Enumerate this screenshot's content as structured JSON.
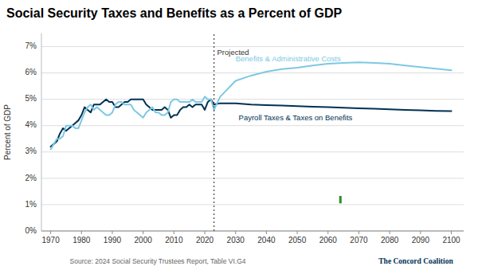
{
  "chart_data": {
    "type": "line",
    "title": "Social Security Taxes and Benefits as a Percent of GDP",
    "ylabel": "Percent of GDP",
    "source": "Source: 2024 Social Security Trustees Report, Table VI.G4",
    "credit": "The Concord Coalition",
    "xlim": [
      1967,
      2104
    ],
    "xticks": [
      1970,
      1980,
      1990,
      2000,
      2010,
      2020,
      2030,
      2040,
      2050,
      2060,
      2070,
      2080,
      2090,
      2100
    ],
    "ylim": [
      0,
      7.5
    ],
    "yticks": [
      {
        "value": 0,
        "label": "0%"
      },
      {
        "value": 1,
        "label": "1%"
      },
      {
        "value": 2,
        "label": "2%"
      },
      {
        "value": 3,
        "label": "3%"
      },
      {
        "value": 4,
        "label": "4%"
      },
      {
        "value": 5,
        "label": "5%"
      },
      {
        "value": 6,
        "label": "6%"
      },
      {
        "value": 7,
        "label": "7%"
      }
    ],
    "grid": true,
    "series": [
      {
        "color": "#003153",
        "x": [
          1970,
          1971,
          1972,
          1973,
          1974,
          1975,
          1976,
          1977,
          1978,
          1979,
          1980,
          1981,
          1982,
          1983,
          1984,
          1985,
          1986,
          1987,
          1988,
          1989,
          1990,
          1991,
          1992,
          1993,
          1994,
          1995,
          1996,
          1997,
          1998,
          1999,
          2000,
          2001,
          2002,
          2003,
          2004,
          2005,
          2006,
          2007,
          2008,
          2009,
          2010,
          2011,
          2012,
          2013,
          2014,
          2015,
          2016,
          2017,
          2018,
          2019,
          2020,
          2021,
          2022,
          2023
        ],
        "values": [
          3.2,
          3.3,
          3.4,
          3.7,
          3.9,
          3.8,
          3.9,
          4.0,
          4.1,
          4.2,
          4.4,
          4.7,
          4.6,
          4.5,
          4.8,
          4.8,
          4.8,
          4.9,
          5.0,
          4.9,
          4.9,
          4.7,
          4.7,
          4.8,
          4.9,
          4.9,
          5.0,
          5.0,
          5.0,
          5.0,
          5.0,
          4.8,
          4.7,
          4.6,
          4.6,
          4.6,
          4.6,
          4.7,
          4.6,
          4.3,
          4.4,
          4.4,
          4.6,
          4.7,
          4.7,
          4.8,
          4.7,
          4.8,
          4.8,
          4.8,
          4.6,
          4.9,
          5.0,
          4.8
        ]
      },
      {
        "color": "#7EC8E3",
        "x": [
          1970,
          1971,
          1972,
          1973,
          1974,
          1975,
          1976,
          1977,
          1978,
          1979,
          1980,
          1981,
          1982,
          1983,
          1984,
          1985,
          1986,
          1987,
          1988,
          1989,
          1990,
          1991,
          1992,
          1993,
          1994,
          1995,
          1996,
          1997,
          1998,
          1999,
          2000,
          2001,
          2002,
          2003,
          2004,
          2005,
          2006,
          2007,
          2008,
          2009,
          2010,
          2011,
          2012,
          2013,
          2014,
          2015,
          2016,
          2017,
          2018,
          2019,
          2020,
          2021,
          2022,
          2023
        ],
        "values": [
          3.1,
          3.3,
          3.5,
          3.5,
          3.6,
          4.0,
          4.0,
          4.0,
          3.9,
          3.9,
          4.2,
          4.5,
          4.7,
          4.8,
          4.6,
          4.7,
          4.6,
          4.5,
          4.4,
          4.4,
          4.5,
          4.8,
          4.9,
          4.9,
          4.8,
          4.8,
          4.8,
          4.6,
          4.5,
          4.4,
          4.3,
          4.5,
          4.6,
          4.7,
          4.5,
          4.5,
          4.4,
          4.4,
          4.5,
          4.9,
          5.0,
          5.0,
          4.9,
          4.9,
          4.9,
          4.9,
          5.0,
          4.9,
          4.9,
          4.9,
          5.1,
          5.0,
          5.0,
          4.6
        ]
      },
      {
        "color": "#003153",
        "x": [
          2023,
          2025,
          2030,
          2035,
          2040,
          2045,
          2050,
          2055,
          2060,
          2065,
          2070,
          2075,
          2080,
          2085,
          2090,
          2095,
          2100
        ],
        "values": [
          4.8,
          4.85,
          4.85,
          4.8,
          4.78,
          4.76,
          4.74,
          4.72,
          4.7,
          4.68,
          4.66,
          4.64,
          4.62,
          4.6,
          4.58,
          4.56,
          4.55
        ]
      },
      {
        "color": "#7EC8E3",
        "x": [
          2023,
          2025,
          2030,
          2035,
          2040,
          2045,
          2050,
          2055,
          2060,
          2065,
          2070,
          2075,
          2080,
          2085,
          2090,
          2095,
          2100
        ],
        "values": [
          4.6,
          5.1,
          5.7,
          5.9,
          6.05,
          6.15,
          6.2,
          6.28,
          6.35,
          6.38,
          6.4,
          6.38,
          6.35,
          6.28,
          6.22,
          6.16,
          6.1
        ]
      }
    ],
    "reference_lines": [
      {
        "x": 2023
      }
    ],
    "annotations": [
      {
        "text": "Projected",
        "x": 2024,
        "y": 6.75
      },
      {
        "text": "Benefits & Administrative Costs",
        "x": 2030,
        "y": 6.52,
        "color": "#7EC8E3"
      },
      {
        "text": "Payroll Taxes & Taxes on Benefits",
        "x": 2031,
        "y": 4.28,
        "color": "#003153"
      }
    ],
    "markers": [
      {
        "x": 2064,
        "y": 1.05,
        "height": 0.28,
        "color": "#2D8B2D"
      }
    ]
  }
}
